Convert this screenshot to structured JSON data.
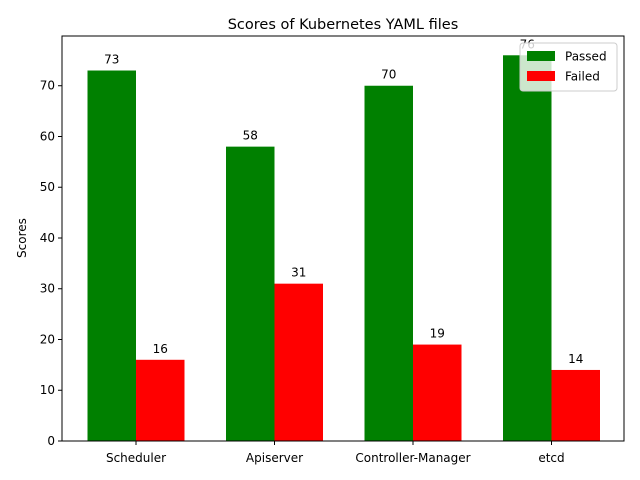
{
  "chart_data": {
    "type": "bar",
    "title": "Scores of Kubernetes YAML files",
    "xlabel": "",
    "ylabel": "Scores",
    "categories": [
      "Scheduler",
      "Apiserver",
      "Controller-Manager",
      "etcd"
    ],
    "series": [
      {
        "name": "Passed",
        "values": [
          73,
          58,
          70,
          76
        ],
        "color": "#008000"
      },
      {
        "name": "Failed",
        "values": [
          16,
          31,
          19,
          14
        ],
        "color": "#ff0000"
      }
    ],
    "ylim": [
      0,
      79.8
    ],
    "yticks": [
      0,
      10,
      20,
      30,
      40,
      50,
      60,
      70
    ],
    "legend": "top-right",
    "grid": false,
    "data_labels": true
  }
}
